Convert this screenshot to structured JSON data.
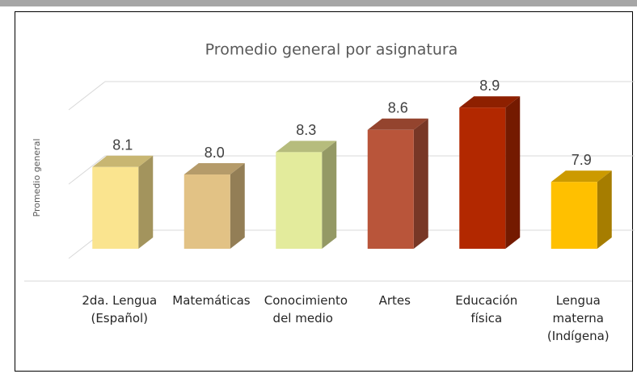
{
  "chart_data": {
    "type": "bar3d",
    "title": "Promedio general por asignatura",
    "y_label": "Promedio general",
    "categories": [
      "2da. Lengua (Español)",
      "Matemáticas",
      "Conocimiento del medio",
      "Artes",
      "Educación física",
      "Lengua materna (Indígena)"
    ],
    "values": [
      8.1,
      8.0,
      8.3,
      8.6,
      8.9,
      7.9
    ],
    "value_labels": [
      "8.1",
      "8.0",
      "8.3",
      "8.6",
      "8.9",
      "7.9"
    ],
    "colors": [
      "#fae48f",
      "#e2c285",
      "#e3eb9c",
      "#b9553a",
      "#b22800",
      "#ffc000"
    ],
    "ylim": [
      7,
      9
    ],
    "yticks": [
      7,
      8,
      9
    ],
    "grid": true
  }
}
